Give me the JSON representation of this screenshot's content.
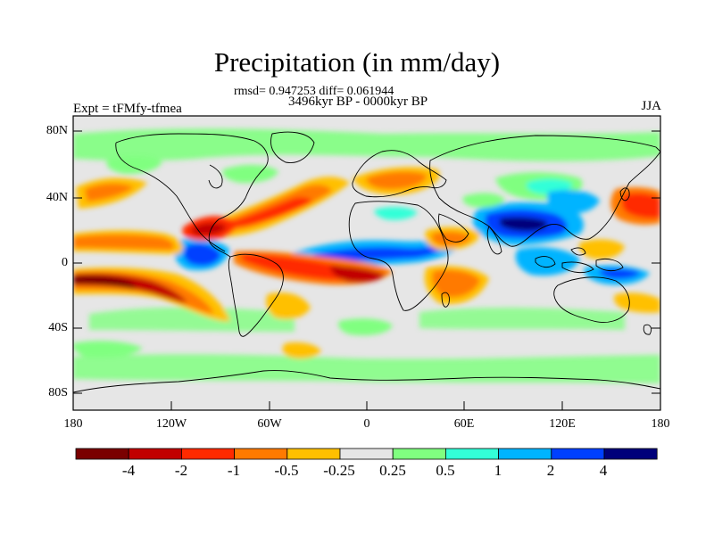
{
  "title": "Precipitation (in mm/day)",
  "stats": "rmsd= 0.947253 diff= 0.061944",
  "period": "3496kyr BP - 0000kyr BP",
  "experiment": "Expt = tFMfy-tfmea",
  "season": "JJA",
  "lat_ticks": [
    "80N",
    "40N",
    "0",
    "40S",
    "80S"
  ],
  "lon_ticks": [
    "180",
    "120W",
    "60W",
    "0",
    "60E",
    "120E",
    "180"
  ],
  "colorbar": {
    "labels": [
      "-4",
      "-2",
      "-1",
      "-0.5",
      "-0.25",
      "0.25",
      "0.5",
      "1",
      "2",
      "4"
    ],
    "colors": [
      "#7a0000",
      "#c10000",
      "#ff2a00",
      "#ff7a00",
      "#ffc000",
      "#e6e6e6",
      "#80ff80",
      "#33ffd8",
      "#00b4ff",
      "#0040ff",
      "#00007a"
    ]
  }
}
